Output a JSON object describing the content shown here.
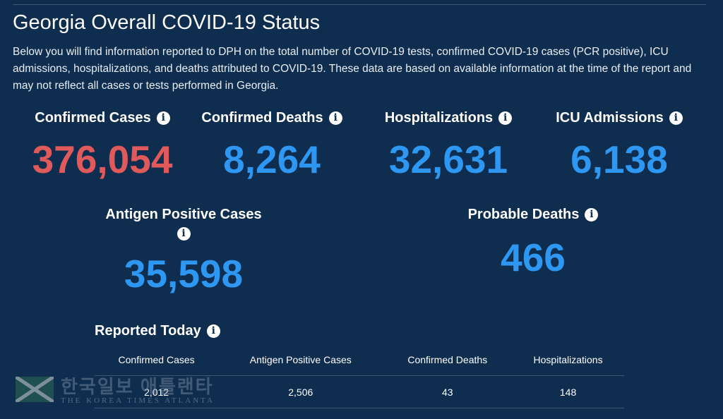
{
  "page": {
    "title": "Georgia Overall COVID-19 Status",
    "description": "Below you will find information reported to DPH on the total number of COVID-19 tests, confirmed COVID-19 cases (PCR positive), ICU admissions, hospitalizations, and deaths attributed to COVID-19. These data are based on available information at the time of the report and may not reflect all cases or tests performed in Georgia."
  },
  "stats": {
    "confirmed_cases": {
      "label": "Confirmed Cases",
      "value": "376,054"
    },
    "confirmed_deaths": {
      "label": "Confirmed Deaths",
      "value": "8,264"
    },
    "hospitalizations": {
      "label": "Hospitalizations",
      "value": "32,631"
    },
    "icu_admissions": {
      "label": "ICU Admissions",
      "value": "6,138"
    },
    "antigen_positive": {
      "label": "Antigen Positive Cases",
      "value": "35,598"
    },
    "probable_deaths": {
      "label": "Probable Deaths",
      "value": "466"
    }
  },
  "reported_today": {
    "title": "Reported Today",
    "columns": [
      "Confirmed Cases",
      "Antigen Positive Cases",
      "Confirmed Deaths",
      "Hospitalizations"
    ],
    "values": [
      "2,012",
      "2,506",
      "43",
      "148"
    ]
  },
  "icons": {
    "info": "i"
  },
  "watermark": {
    "korean": "한국일보 애틀랜타",
    "english": "THE KOREA TIMES ATLANTA"
  },
  "colors": {
    "background": "#0f2d4f",
    "accent_red": "#e05a5c",
    "accent_blue": "#2e97f2"
  }
}
